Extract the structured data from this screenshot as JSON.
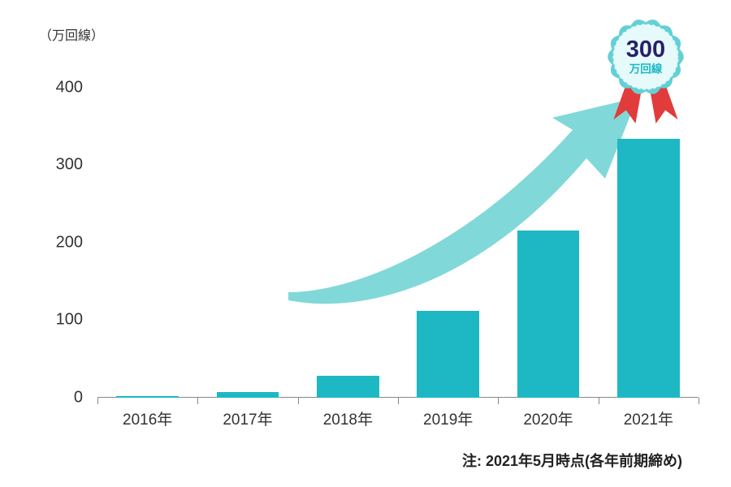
{
  "chart": {
    "type": "bar",
    "y_unit_label": "（万回線）",
    "categories": [
      "2016年",
      "2017年",
      "2018年",
      "2019年",
      "2020年",
      "2021年"
    ],
    "values": [
      2,
      7,
      28,
      112,
      216,
      334
    ],
    "y_ticks": [
      0,
      100,
      200,
      300,
      400
    ],
    "y_max": 450,
    "bar_color": "#1db8c4",
    "bar_width_ratio": 0.62,
    "axis_color": "#888888",
    "label_color": "#333333",
    "tick_fontsize": 20,
    "xlabel_fontsize": 19,
    "background_color": "#ffffff",
    "arrow_color": "#81d8d8"
  },
  "badge": {
    "number": "300",
    "subtext": "万回線",
    "seal_color": "#63d0d6",
    "seal_inner_color": "#e6fafb",
    "ribbon_color": "#e23b3b",
    "number_color": "#281f6a",
    "subtext_color": "#1db8c4"
  },
  "footnote": "注: 2021年5月時点(各年前期締め)"
}
